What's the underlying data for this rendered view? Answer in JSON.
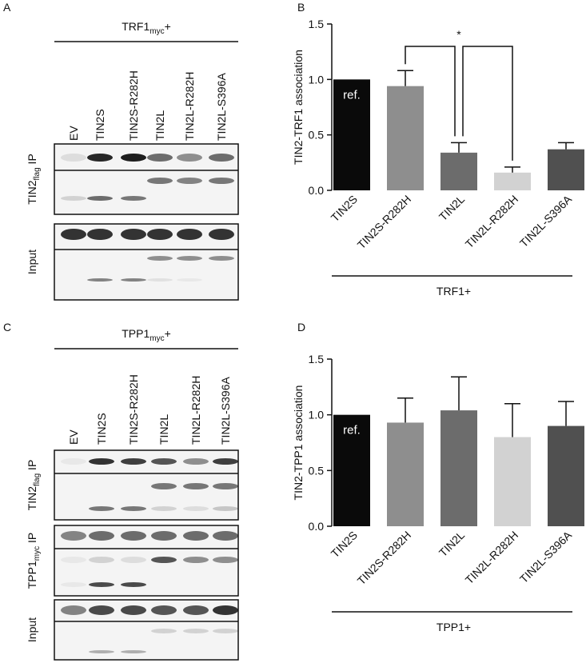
{
  "panels": {
    "a": {
      "label": "A",
      "treatment": "TRF1",
      "treatment_sub": "myc",
      "treatment_suffix": "+",
      "lanes": [
        "EV",
        "TIN2S",
        "TIN2S-R282H",
        "TIN2L",
        "TIN2L-R282H",
        "TIN2L-S396A"
      ],
      "blots": [
        {
          "label": "TIN2",
          "sub": "flag",
          "suffix": " IP"
        },
        {
          "label": "Input"
        }
      ]
    },
    "c": {
      "label": "C",
      "treatment": "TPP1",
      "treatment_sub": "myc",
      "treatment_suffix": "+",
      "lanes": [
        "EV",
        "TIN2S",
        "TIN2S-R282H",
        "TIN2L",
        "TIN2L-R282H",
        "TIN2L-S396A"
      ],
      "blots": [
        {
          "label": "TIN2",
          "sub": "flag",
          "suffix": " IP"
        },
        {
          "label": "TPP1",
          "sub": "myc",
          "suffix": " IP"
        },
        {
          "label": "Input"
        }
      ]
    }
  },
  "chart_data": [
    {
      "type": "bar",
      "panel": "B",
      "ylabel": "TIN2-TRF1 association",
      "xlabel": "TRF1+",
      "categories": [
        "TIN2S",
        "TIN2S-R282H",
        "TIN2L",
        "TIN2L-R282H",
        "TIN2L-S396A"
      ],
      "values": [
        1.0,
        0.94,
        0.34,
        0.16,
        0.37
      ],
      "errors": [
        0,
        0.14,
        0.09,
        0.05,
        0.06
      ],
      "colors": [
        "#0a0a0a",
        "#8e8e8e",
        "#6c6c6c",
        "#d2d2d2",
        "#505050"
      ],
      "ylim": [
        0,
        1.5
      ],
      "yticks": [
        {
          "value": 0,
          "label": "0.0"
        },
        0.5,
        {
          "value": 1,
          "label": "1.0"
        },
        1.5
      ],
      "annotations": [
        {
          "text": "ref.",
          "category": "TIN2S"
        }
      ],
      "significance": {
        "text": "*",
        "pairs": [
          [
            "TIN2S-R282H",
            "TIN2L"
          ],
          [
            "TIN2L",
            "TIN2L-R282H"
          ]
        ]
      }
    },
    {
      "type": "bar",
      "panel": "D",
      "ylabel": "TIN2-TPP1 association",
      "xlabel": "TPP1+",
      "categories": [
        "TIN2S",
        "TIN2S-R282H",
        "TIN2L",
        "TIN2L-R282H",
        "TIN2L-S396A"
      ],
      "values": [
        1.0,
        0.93,
        1.04,
        0.8,
        0.9
      ],
      "errors": [
        0,
        0.22,
        0.3,
        0.3,
        0.22
      ],
      "colors": [
        "#0a0a0a",
        "#8e8e8e",
        "#6c6c6c",
        "#d2d2d2",
        "#505050"
      ],
      "ylim": [
        0,
        1.5
      ],
      "yticks": [
        {
          "value": 0,
          "label": "0.0"
        },
        0.5,
        {
          "value": 1,
          "label": "1.0"
        },
        1.5
      ],
      "annotations": [
        {
          "text": "ref.",
          "category": "TIN2S"
        }
      ]
    }
  ]
}
